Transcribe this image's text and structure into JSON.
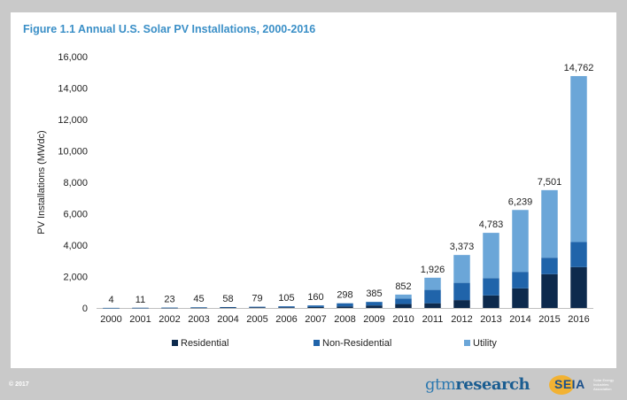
{
  "figure_title": "Figure 1.1 Annual U.S. Solar PV Installations, 2000-2016",
  "footer": {
    "copyright": "© 2017",
    "gtm_logo_prefix": "gtm",
    "gtm_logo_suffix": "research",
    "seia_logo": "SEIA",
    "seia_tagline": "Solar Energy Industries Association"
  },
  "colors": {
    "background": "#c9c9c9",
    "title": "#3a8fc7",
    "residential": "#0d2a4d",
    "non_residential": "#2064aa",
    "utility": "#6ba6d8"
  },
  "chart_data": {
    "type": "bar",
    "stacked": true,
    "title": "Figure 1.1 Annual U.S. Solar PV Installations, 2000-2016",
    "xlabel": "",
    "ylabel": "PV Installations (MWdc)",
    "ylim": [
      0,
      16000
    ],
    "yticks": [
      "0",
      "2,000",
      "4,000",
      "6,000",
      "8,000",
      "10,000",
      "12,000",
      "14,000",
      "16,000"
    ],
    "grid": false,
    "legend_position": "bottom",
    "categories": [
      "2000",
      "2001",
      "2002",
      "2003",
      "2004",
      "2005",
      "2006",
      "2007",
      "2008",
      "2009",
      "2010",
      "2011",
      "2012",
      "2013",
      "2014",
      "2015",
      "2016"
    ],
    "totals": [
      4,
      11,
      23,
      45,
      58,
      79,
      105,
      160,
      298,
      385,
      852,
      1926,
      3373,
      4783,
      6239,
      7501,
      14762
    ],
    "total_labels": [
      "4",
      "11",
      "23",
      "45",
      "58",
      "79",
      "105",
      "160",
      "298",
      "385",
      "852",
      "1,926",
      "3,373",
      "4,783",
      "6,239",
      "7,501",
      "14,762"
    ],
    "series": [
      {
        "name": "Residential",
        "color": "#0d2a4d",
        "values": [
          3,
          6,
          12,
          20,
          28,
          37,
          40,
          60,
          100,
          160,
          250,
          300,
          500,
          800,
          1250,
          2150,
          2600
        ]
      },
      {
        "name": "Non-Residential",
        "color": "#2064aa",
        "values": [
          1,
          5,
          11,
          25,
          30,
          42,
          65,
          100,
          198,
          225,
          350,
          850,
          1100,
          1100,
          1050,
          1050,
          1600
        ]
      },
      {
        "name": "Utility",
        "color": "#6ba6d8",
        "values": [
          0,
          0,
          0,
          0,
          0,
          0,
          0,
          0,
          0,
          0,
          252,
          776,
          1773,
          2883,
          3939,
          4301,
          10562
        ]
      }
    ]
  }
}
